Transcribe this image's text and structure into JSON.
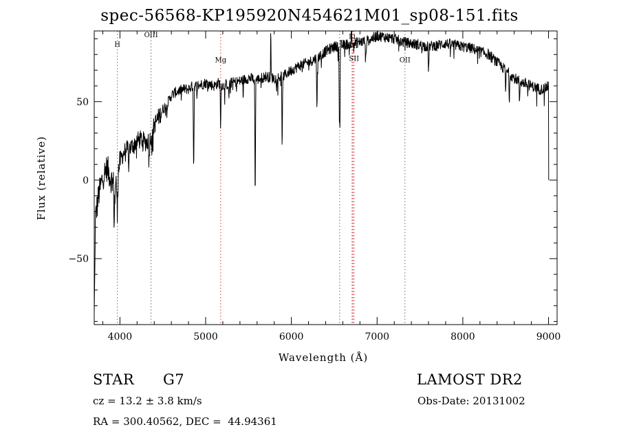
{
  "chart_data": {
    "type": "line",
    "title": "spec-56568-KP195920N454621M01_sp08-151.fits",
    "xlabel": "Wavelength (Å)",
    "ylabel": "Flux (relative)",
    "xlim": [
      3700,
      9100
    ],
    "ylim": [
      -92,
      95
    ],
    "x_ticks": [
      4000,
      5000,
      6000,
      7000,
      8000,
      9000
    ],
    "y_ticks": [
      -50,
      0,
      50
    ],
    "grid": false,
    "series": [
      {
        "x": [
          3700,
          3750,
          3800,
          3850,
          3900,
          3950,
          4000,
          4050,
          4100,
          4150,
          4200,
          4250,
          4300,
          4350,
          4400,
          4450,
          4500,
          4550,
          4600,
          4650,
          4700,
          4750,
          4800,
          4850,
          4900,
          4950,
          5000,
          5050,
          5100,
          5150,
          5200,
          5300,
          5400,
          5500,
          5600,
          5700,
          5800,
          5900,
          6000,
          6100,
          6200,
          6300,
          6400,
          6500,
          6600,
          6700,
          6800,
          6900,
          7000,
          7100,
          7200,
          7300,
          7400,
          7500,
          7600,
          7700,
          7800,
          7900,
          8000,
          8100,
          8200,
          8300,
          8400,
          8500,
          8600,
          8700,
          8800,
          8900,
          8950,
          9000
        ],
        "values": [
          -30,
          -10,
          2,
          8,
          0,
          -5,
          12,
          18,
          20,
          22,
          25,
          26,
          24,
          26,
          35,
          40,
          45,
          48,
          54,
          56,
          57,
          58,
          58,
          60,
          60,
          61,
          62,
          61,
          60,
          62,
          60,
          62,
          63,
          65,
          64,
          66,
          65,
          66,
          70,
          73,
          75,
          78,
          82,
          85,
          86,
          87,
          88,
          89,
          92,
          91,
          90,
          88,
          87,
          86,
          85,
          86,
          87,
          86,
          85,
          84,
          82,
          80,
          75,
          70,
          65,
          62,
          60,
          58,
          58,
          60
        ],
        "color": "#000000"
      }
    ],
    "absorption_lines": [
      {
        "x": 3934,
        "depth": 22
      },
      {
        "x": 3969,
        "depth": 20
      },
      {
        "x": 4101,
        "depth": 10
      },
      {
        "x": 4340,
        "depth": 12
      },
      {
        "x": 4383,
        "depth": 10
      },
      {
        "x": 4861,
        "depth": 48
      },
      {
        "x": 5175,
        "depth": 18
      },
      {
        "x": 5270,
        "depth": 8
      },
      {
        "x": 5577,
        "depth": 65
      },
      {
        "x": 5893,
        "depth": 40
      },
      {
        "x": 6300,
        "depth": 30
      },
      {
        "x": 6563,
        "depth": 50
      },
      {
        "x": 6867,
        "depth": 12
      },
      {
        "x": 7600,
        "depth": 15
      },
      {
        "x": 8500,
        "depth": 12
      },
      {
        "x": 8542,
        "depth": 15
      },
      {
        "x": 8662,
        "depth": 12
      }
    ],
    "emission_spikes": [
      {
        "x": 5760,
        "height": 25
      },
      {
        "x": 6700,
        "height": 10
      }
    ],
    "marked_lines": [
      {
        "label": "H",
        "x": 3970,
        "color": "#666666",
        "label_y": 85
      },
      {
        "label": "OIII",
        "x": 4363,
        "color": "#666666",
        "label_y": 91
      },
      {
        "label": "Mg",
        "x": 5175,
        "color": "#cc3333",
        "label_y": 75
      },
      {
        "label": "H",
        "x": 6563,
        "color": "#666666",
        "label_y": 84
      },
      {
        "label": "Li",
        "x": 6708,
        "color": "#cc3333",
        "label_y": 90
      },
      {
        "label": "SII",
        "x": 6717,
        "color": "#cc3333",
        "label_y": 84
      },
      {
        "label": "SII",
        "x": 6731,
        "color": "#cc3333",
        "label_y": 76
      },
      {
        "label": "OII",
        "x": 7325,
        "color": "#666666",
        "label_y": 75
      }
    ]
  },
  "footer": {
    "class_label": "STAR",
    "subclass": "G7",
    "cz": "cz = 13.2 ± 3.8 km/s",
    "coords": "RA = 300.40562, DEC =  44.94361",
    "survey": "LAMOST DR2",
    "obs_date": "Obs-Date: 20131002"
  }
}
